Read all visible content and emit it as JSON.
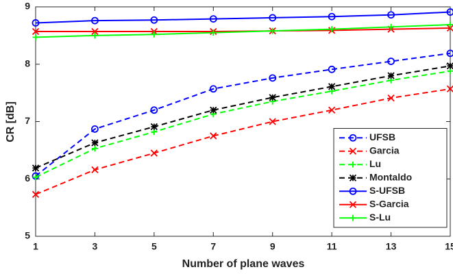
{
  "chart_data": {
    "type": "line",
    "xlabel": "Number of plane waves",
    "ylabel": "CR [dB]",
    "x": [
      1,
      3,
      5,
      7,
      9,
      11,
      13,
      15
    ],
    "xlim": [
      1,
      15
    ],
    "xticks": [
      1,
      3,
      5,
      7,
      9,
      11,
      13,
      15
    ],
    "ylim": [
      5,
      9
    ],
    "yticks": [
      5,
      6,
      7,
      8,
      9
    ],
    "grid": false,
    "legend": "lower right",
    "series": [
      {
        "name": "UFSB",
        "color": "#0000ff",
        "style": "dashed",
        "marker": "o",
        "values": [
          6.05,
          6.87,
          7.2,
          7.57,
          7.76,
          7.91,
          8.05,
          8.19
        ]
      },
      {
        "name": "Garcia",
        "color": "#ff0000",
        "style": "dashed",
        "marker": "x",
        "values": [
          5.73,
          6.16,
          6.45,
          6.75,
          7.0,
          7.2,
          7.41,
          7.57
        ]
      },
      {
        "name": "Lu",
        "color": "#00ff00",
        "style": "dashed",
        "marker": "+",
        "values": [
          6.03,
          6.53,
          6.82,
          7.13,
          7.35,
          7.53,
          7.72,
          7.88
        ]
      },
      {
        "name": "Montaldo",
        "color": "#000000",
        "style": "dashed",
        "marker": "*",
        "values": [
          6.19,
          6.63,
          6.91,
          7.2,
          7.42,
          7.61,
          7.8,
          7.97
        ]
      },
      {
        "name": "S-UFSB",
        "color": "#0000ff",
        "style": "solid",
        "marker": "o",
        "values": [
          8.72,
          8.76,
          8.77,
          8.79,
          8.81,
          8.83,
          8.86,
          8.91
        ]
      },
      {
        "name": "S-Garcia",
        "color": "#ff0000",
        "style": "solid",
        "marker": "x",
        "values": [
          8.57,
          8.57,
          8.57,
          8.57,
          8.58,
          8.59,
          8.61,
          8.63
        ]
      },
      {
        "name": "S-Lu",
        "color": "#00ff00",
        "style": "solid",
        "marker": "+",
        "values": [
          8.47,
          8.5,
          8.52,
          8.55,
          8.58,
          8.61,
          8.65,
          8.69
        ]
      }
    ]
  }
}
